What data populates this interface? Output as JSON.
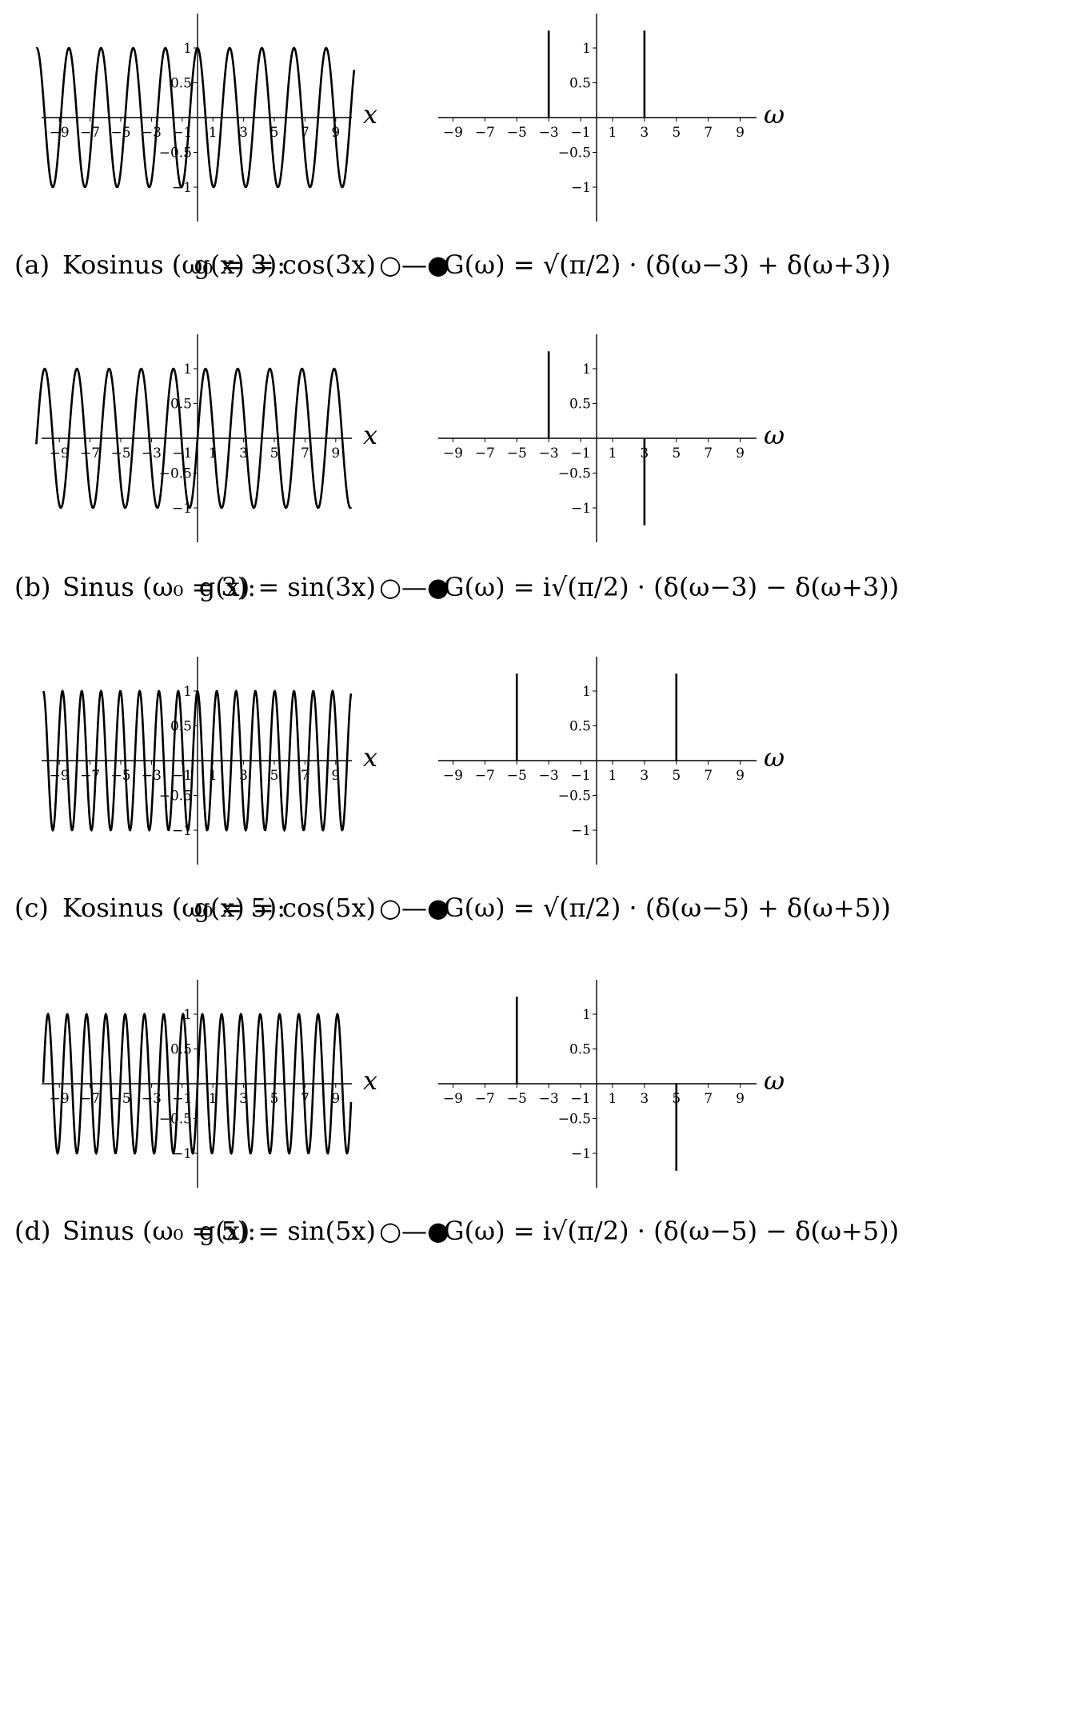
{
  "chart_data": [
    {
      "type": "line",
      "panel": "a",
      "function": "cos",
      "omega0": 3,
      "x_range": [
        -10.5,
        10.2
      ],
      "ylim": [
        -1.5,
        1.5
      ],
      "xlabel": "x",
      "xticks": [
        "−9",
        "−7",
        "−5",
        "−3",
        "−1",
        "1",
        "3",
        "5",
        "7",
        "9"
      ],
      "yticks": [
        "1",
        "0.5",
        "−0.5",
        "−1"
      ],
      "caption": {
        "label": "(a)",
        "name": "Kosinus (ω₀ = 3):",
        "time_expr": "g(x) = cos(3x)",
        "symbol": "○—●",
        "freq_expr": "G(ω) = √(π/2) · (δ(ω−3) + δ(ω+3))"
      }
    },
    {
      "type": "bar",
      "panel": "a",
      "xlabel": "ω",
      "xlim": [
        -10,
        10
      ],
      "ylim": [
        -1.5,
        1.5
      ],
      "xticks": [
        "−9",
        "−7",
        "−5",
        "−3",
        "−1",
        "1",
        "3",
        "5",
        "7",
        "9"
      ],
      "yticks": [
        "1",
        "0.5",
        "−0.5",
        "−1"
      ],
      "impulses": [
        {
          "x": -3,
          "y": 1.25
        },
        {
          "x": 3,
          "y": 1.25
        }
      ]
    },
    {
      "type": "line",
      "panel": "b",
      "function": "sin",
      "omega0": 3,
      "x_range": [
        -10.5,
        10.0
      ],
      "ylim": [
        -1.5,
        1.5
      ],
      "xlabel": "x",
      "xticks": [
        "−9",
        "−7",
        "−5",
        "−3",
        "−1",
        "1",
        "3",
        "5",
        "7",
        "9"
      ],
      "yticks": [
        "1",
        "0.5",
        "−0.5",
        "−1"
      ],
      "caption": {
        "label": "(b)",
        "name": "Sinus (ω₀ = 3):",
        "time_expr": "g(x) = sin(3x)",
        "symbol": "○—●",
        "freq_expr": "G(ω) = i√(π/2) · (δ(ω−3) − δ(ω+3))"
      }
    },
    {
      "type": "bar",
      "panel": "b",
      "xlabel": "ω",
      "xlim": [
        -10,
        10
      ],
      "ylim": [
        -1.5,
        1.5
      ],
      "xticks": [
        "−9",
        "−7",
        "−5",
        "−3",
        "−1",
        "1",
        "3",
        "5",
        "7",
        "9"
      ],
      "yticks": [
        "1",
        "0.5",
        "−0.5",
        "−1"
      ],
      "impulses": [
        {
          "x": -3,
          "y": 1.25
        },
        {
          "x": 3,
          "y": -1.25
        }
      ]
    },
    {
      "type": "line",
      "panel": "c",
      "function": "cos",
      "omega0": 5,
      "x_range": [
        -10.05,
        10.0
      ],
      "ylim": [
        -1.5,
        1.5
      ],
      "xlabel": "x",
      "xticks": [
        "−9",
        "−7",
        "−5",
        "−3",
        "−1",
        "1",
        "3",
        "5",
        "7",
        "9"
      ],
      "yticks": [
        "1",
        "0.5",
        "−0.5",
        "−1"
      ],
      "caption": {
        "label": "(c)",
        "name": "Kosinus (ω₀ = 5):",
        "time_expr": "g(x) = cos(5x)",
        "symbol": "○—●",
        "freq_expr": "G(ω) = √(π/2) · (δ(ω−5) + δ(ω+5))"
      }
    },
    {
      "type": "bar",
      "panel": "c",
      "xlabel": "ω",
      "xlim": [
        -10,
        10
      ],
      "ylim": [
        -1.5,
        1.5
      ],
      "xticks": [
        "−9",
        "−7",
        "−5",
        "−3",
        "−1",
        "1",
        "3",
        "5",
        "7",
        "9"
      ],
      "yticks": [
        "1",
        "0.5",
        "−0.5",
        "−1"
      ],
      "impulses": [
        {
          "x": -5,
          "y": 1.25
        },
        {
          "x": 5,
          "y": 1.25
        }
      ]
    },
    {
      "type": "line",
      "panel": "d",
      "function": "sin",
      "omega0": 5,
      "x_range": [
        -10.05,
        10.0
      ],
      "ylim": [
        -1.5,
        1.5
      ],
      "xlabel": "x",
      "xticks": [
        "−9",
        "−7",
        "−5",
        "−3",
        "−1",
        "1",
        "3",
        "5",
        "7",
        "9"
      ],
      "yticks": [
        "1",
        "0.5",
        "−0.5",
        "−1"
      ],
      "caption": {
        "label": "(d)",
        "name": "Sinus (ω₀ = 5):",
        "time_expr": "g(x) = sin(5x)",
        "symbol": "○—●",
        "freq_expr": "G(ω) = i√(π/2) · (δ(ω−5) − δ(ω+5))"
      }
    },
    {
      "type": "bar",
      "panel": "d",
      "xlabel": "ω",
      "xlim": [
        -10,
        10
      ],
      "ylim": [
        -1.5,
        1.5
      ],
      "xticks": [
        "−9",
        "−7",
        "−5",
        "−3",
        "−1",
        "1",
        "3",
        "5",
        "7",
        "9"
      ],
      "yticks": [
        "1",
        "0.5",
        "−0.5",
        "−1"
      ],
      "impulses": [
        {
          "x": -5,
          "y": 1.25
        },
        {
          "x": 5,
          "y": -1.25
        }
      ]
    }
  ]
}
